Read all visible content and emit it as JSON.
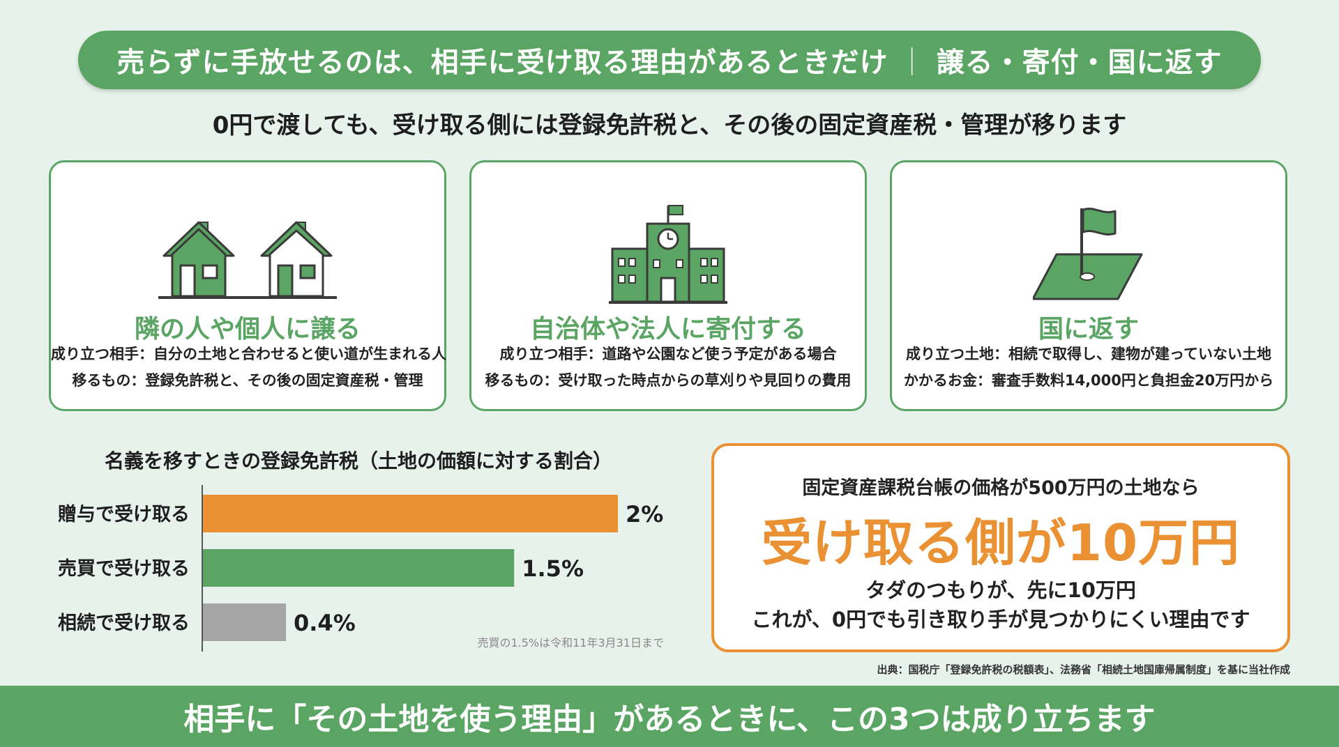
{
  "title": {
    "main": "売らずに手放せるのは、相手に受け取る理由があるときだけ",
    "separator": "｜",
    "right": "譲る・寄付・国に返す"
  },
  "subtitle": "0円で渡しても、受け取る側には登録免許税と、その後の固定資産税・管理が移ります",
  "cards": [
    {
      "icon": "houses-icon",
      "heading": "隣の人や個人に譲る",
      "line1": "成り立つ相手：自分の土地と合わせると使い道が生まれる人",
      "line2": "移るもの：登録免許税と、その後の固定資産税・管理"
    },
    {
      "icon": "municipal-building-icon",
      "heading": "自治体や法人に寄付する",
      "line1": "成り立つ相手：道路や公園など使う予定がある場合",
      "line2": "移るもの：受け取った時点からの草刈りや見回りの費用"
    },
    {
      "icon": "flag-on-land-icon",
      "heading": "国に返す",
      "line1": "成り立つ土地：相続で取得し、建物が建っていない土地",
      "line2": "かかるお金：審査手数料14,000円と負担金20万円から"
    }
  ],
  "chart_data": {
    "type": "bar",
    "orientation": "horizontal",
    "title": "名義を移すときの登録免許税（土地の価額に対する割合）",
    "categories": [
      "贈与で受け取る",
      "売買で受け取る",
      "相続で受け取る"
    ],
    "values": [
      2,
      1.5,
      0.4
    ],
    "value_labels": [
      "2%",
      "1.5%",
      "0.4%"
    ],
    "colors": [
      "#ea9133",
      "#5aa563",
      "#a6a6a6"
    ],
    "xlim": [
      0,
      2
    ],
    "grid": false,
    "note": "売買の1.5%は令和11年3月31日まで"
  },
  "callout": {
    "top": "固定資産課税台帳の価格が500万円の土地なら",
    "main": "受け取る側が10万円",
    "sub1": "タダのつもりが、先に10万円",
    "sub2": "これが、0円でも引き取り手が見つかりにくい理由です"
  },
  "source": "出典：国税庁「登録免許税の税額表」、法務省「相続土地国庫帰属制度」を基に当社作成",
  "footer": "相手に「その土地を使う理由」があるときに、この3つは成り立ちます",
  "colors": {
    "green": "#5aa563",
    "orange": "#ea9133",
    "gray": "#a6a6a6",
    "background": "#e8f2ec"
  }
}
